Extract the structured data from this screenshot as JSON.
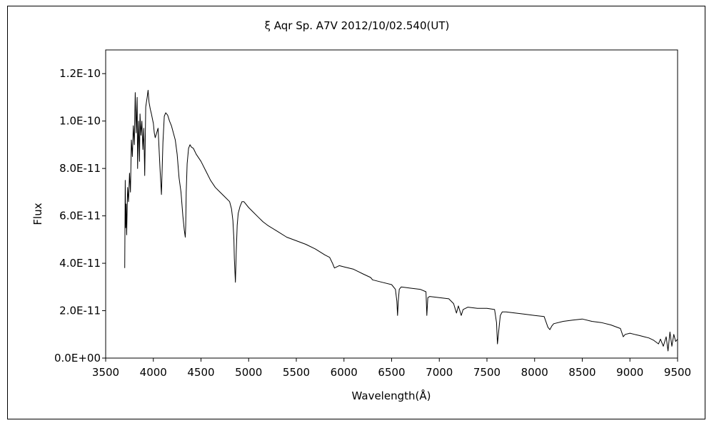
{
  "chart_data": {
    "type": "line",
    "title": "ξ Aqr Sp. A7V 2012/10/02.540(UT)",
    "xlabel": "Wavelength(Å)",
    "ylabel": "Flux",
    "xlim": [
      3500,
      9500
    ],
    "ylim": [
      0,
      1.3e-10
    ],
    "x_ticks": [
      3500,
      4000,
      4500,
      5000,
      5500,
      6000,
      6500,
      7000,
      7500,
      8000,
      8500,
      9000,
      9500
    ],
    "x_tick_labels": [
      "3500",
      "4000",
      "4500",
      "5000",
      "5500",
      "6000",
      "6500",
      "7000",
      "7500",
      "8000",
      "8500",
      "9000",
      "9500"
    ],
    "y_ticks": [
      0,
      2e-11,
      4e-11,
      6e-11,
      8e-11,
      1e-10,
      1.2e-10
    ],
    "y_tick_labels": [
      "0.0E+00",
      "2.0E-11",
      "4.0E-11",
      "6.0E-11",
      "8.0E-11",
      "1.0E-10",
      "1.2E-10"
    ],
    "grid": false,
    "line_color": "#000000",
    "series": [
      {
        "x": [
          3700,
          3705,
          3710,
          3715,
          3720,
          3730,
          3740,
          3750,
          3760,
          3770,
          3780,
          3790,
          3800,
          3810,
          3820,
          3830,
          3835,
          3845,
          3855,
          3860,
          3870,
          3880,
          3890,
          3900,
          3910,
          3920,
          3935,
          3945,
          3955,
          3968,
          3980,
          3990,
          4000,
          4010,
          4020,
          4035,
          4050,
          4070,
          4085,
          4101,
          4115,
          4130,
          4150,
          4170,
          4190,
          4210,
          4230,
          4250,
          4270,
          4290,
          4310,
          4325,
          4335,
          4340,
          4345,
          4355,
          4370,
          4385,
          4400,
          4420,
          4450,
          4500,
          4550,
          4600,
          4650,
          4700,
          4750,
          4800,
          4820,
          4835,
          4845,
          4850,
          4861,
          4870,
          4880,
          4890,
          4910,
          4930,
          4950,
          5000,
          5050,
          5100,
          5150,
          5200,
          5300,
          5400,
          5500,
          5600,
          5700,
          5800,
          5850,
          5880,
          5900,
          5950,
          6000,
          6100,
          6200,
          6280,
          6300,
          6400,
          6500,
          6540,
          6555,
          6562,
          6570,
          6580,
          6600,
          6700,
          6800,
          6860,
          6869,
          6880,
          6900,
          7000,
          7100,
          7150,
          7180,
          7200,
          7230,
          7250,
          7300,
          7400,
          7500,
          7580,
          7600,
          7610,
          7620,
          7640,
          7660,
          7700,
          7800,
          7900,
          8000,
          8100,
          8140,
          8160,
          8180,
          8200,
          8300,
          8400,
          8500,
          8600,
          8700,
          8800,
          8900,
          8930,
          8950,
          9000,
          9050,
          9100,
          9150,
          9200,
          9250,
          9300,
          9320,
          9350,
          9380,
          9400,
          9420,
          9440,
          9460,
          9480,
          9500
        ],
        "y": [
          3.8e-11,
          7.5e-11,
          5.5e-11,
          6.5e-11,
          5.2e-11,
          7.2e-11,
          6.6e-11,
          7.8e-11,
          7e-11,
          9.2e-11,
          8.5e-11,
          9.8e-11,
          9e-11,
          1.12e-10,
          9.5e-11,
          1.1e-10,
          8e-11,
          1e-10,
          8.3e-11,
          1.03e-10,
          9.4e-11,
          1e-10,
          8.8e-11,
          9.7e-11,
          7.7e-11,
          1.06e-10,
          1.1e-10,
          1.13e-10,
          1.08e-10,
          1.05e-10,
          1.03e-10,
          1.01e-10,
          9.9e-11,
          9.5e-11,
          9.3e-11,
          9.5e-11,
          9.7e-11,
          8e-11,
          6.9e-11,
          9.1e-11,
          1.02e-10,
          1.035e-10,
          1.025e-10,
          1e-10,
          9.8e-11,
          9.5e-11,
          9.2e-11,
          8.6e-11,
          7.6e-11,
          7e-11,
          6e-11,
          5.4e-11,
          5.1e-11,
          5.6e-11,
          7e-11,
          8.2e-11,
          8.85e-11,
          9e-11,
          8.9e-11,
          8.85e-11,
          8.6e-11,
          8.3e-11,
          7.9e-11,
          7.5e-11,
          7.2e-11,
          7e-11,
          6.8e-11,
          6.6e-11,
          6.3e-11,
          5.8e-11,
          5e-11,
          4.2e-11,
          3.2e-11,
          4.5e-11,
          5.6e-11,
          6.1e-11,
          6.4e-11,
          6.6e-11,
          6.6e-11,
          6.35e-11,
          6.15e-11,
          5.95e-11,
          5.75e-11,
          5.6e-11,
          5.35e-11,
          5.1e-11,
          4.95e-11,
          4.8e-11,
          4.6e-11,
          4.35e-11,
          4.25e-11,
          4e-11,
          3.8e-11,
          3.9e-11,
          3.85e-11,
          3.75e-11,
          3.55e-11,
          3.4e-11,
          3.3e-11,
          3.2e-11,
          3.1e-11,
          2.9e-11,
          2.4e-11,
          1.8e-11,
          2.4e-11,
          2.9e-11,
          3e-11,
          2.95e-11,
          2.9e-11,
          2.8e-11,
          1.8e-11,
          2.55e-11,
          2.6e-11,
          2.55e-11,
          2.5e-11,
          2.3e-11,
          1.9e-11,
          2.2e-11,
          1.8e-11,
          2.05e-11,
          2.15e-11,
          2.1e-11,
          2.1e-11,
          2.05e-11,
          1.5e-11,
          6e-12,
          1e-11,
          1.8e-11,
          1.95e-11,
          1.95e-11,
          1.9e-11,
          1.85e-11,
          1.8e-11,
          1.75e-11,
          1.3e-11,
          1.2e-11,
          1.35e-11,
          1.45e-11,
          1.55e-11,
          1.6e-11,
          1.65e-11,
          1.55e-11,
          1.5e-11,
          1.4e-11,
          1.25e-11,
          9e-12,
          1e-11,
          1.05e-11,
          1e-11,
          9.5e-12,
          9e-12,
          8.5e-12,
          7.5e-12,
          6e-12,
          8e-12,
          5e-12,
          9e-12,
          3e-12,
          1.1e-11,
          5e-12,
          1e-11,
          7e-12,
          8e-12
        ]
      }
    ]
  }
}
